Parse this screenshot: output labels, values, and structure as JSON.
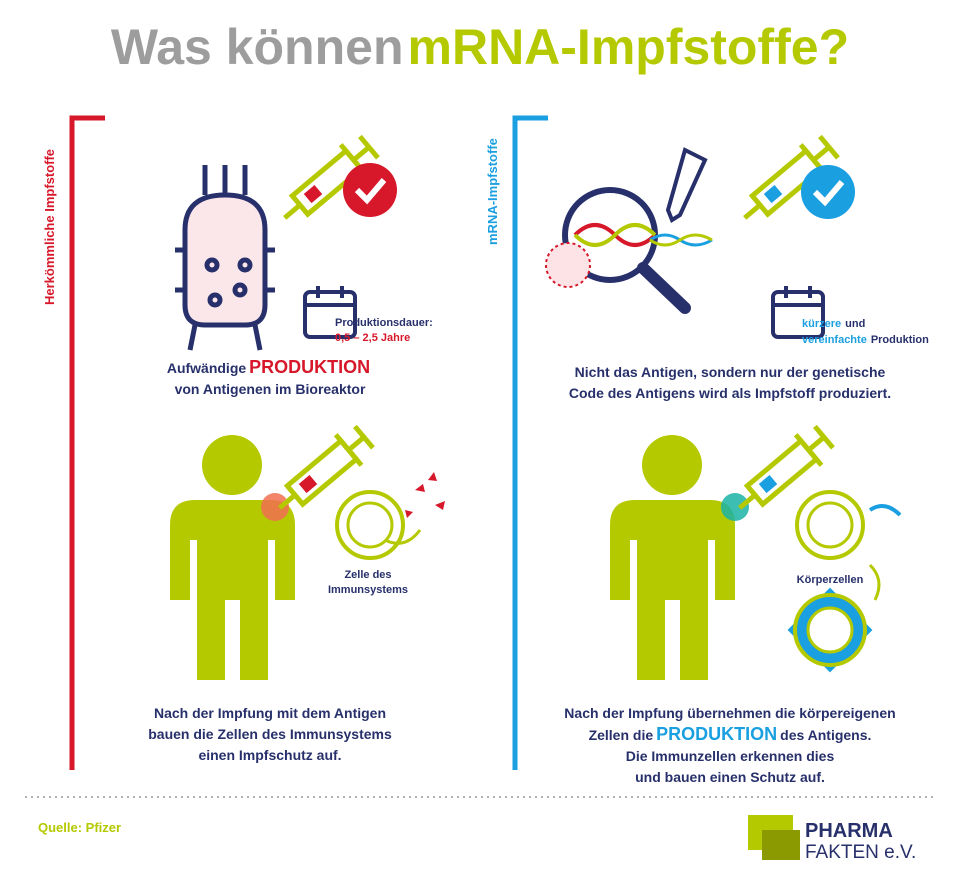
{
  "header": {
    "title_gray": "Was können",
    "title_green": "mRNA-Impfstoffe?"
  },
  "left": {
    "label": "Herkömmliche Impfstoffe",
    "duration_label": "Produktionsdauer:",
    "duration_value": "0,5 – 2,5 Jahre",
    "production_lead": "Aufwändige",
    "production_word": "PRODUKTION",
    "production_rest": "von Antigenen im Bioreaktor",
    "cell_label": [
      "Zelle des",
      "Immunsystems"
    ],
    "result": [
      "Nach der Impfung mit dem Antigen",
      "bauen die Zellen des Immunsystems",
      "einen Impfschutz auf."
    ]
  },
  "right": {
    "label": "mRNA-Impfstoffe",
    "speed_word1": "kürzere",
    "speed_rest1": "und",
    "speed_word2": "vereinfachte",
    "speed_rest2": "Produktion",
    "description": [
      "Nicht das Antigen, sondern nur der genetische",
      "Code des Antigens wird als Impfstoff produziert."
    ],
    "cell_label": "Körperzellen",
    "result_line1": "Nach der Impfung übernehmen die körpereigenen",
    "result_lead": "Zellen die",
    "result_word": "PRODUKTION",
    "result_rest": "des Antigens.",
    "result_lines": [
      "Die Immunzellen erkennen dies",
      "und bauen einen Schutz auf."
    ]
  },
  "footer": {
    "source": "Quelle: Pfizer",
    "logo_top": "PHARMA",
    "logo_bottom": "FAKTEN e.V."
  }
}
